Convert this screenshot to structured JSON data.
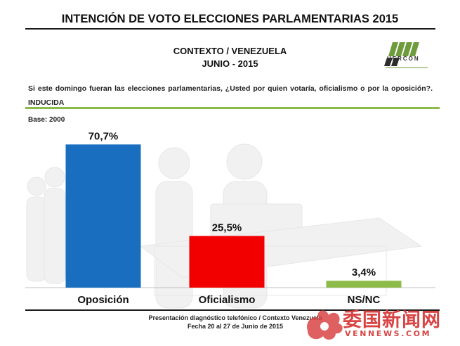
{
  "header": {
    "title": "INTENCIÓN DE VOTO ELECCIONES PARLAMENTARIAS 2015",
    "subtitle_line1": "CONTEXTO / VENEZUELA",
    "subtitle_line2": "JUNIO - 2015"
  },
  "logo": {
    "text": "HERCON"
  },
  "question": "Si este domingo fueran las elecciones parlamentarias, ¿Usted por quien votaría, oficialismo o por la oposición?. INDUCIDA",
  "base_note": "Base: 2000",
  "footer": {
    "line1": "Presentación diagnóstico telefónico / Contexto Venezuela",
    "line2": "Fecha  20 al 27 de Junio de 2015"
  },
  "watermark": {
    "text_cn": "委国新闻网",
    "text_en": "VENNEWS.COM"
  },
  "colors": {
    "opposition": "#1a6ec0",
    "officialism": "#f20000",
    "nsnc": "#8dbb4a",
    "rule_green": "#8dbb4a"
  },
  "chart_data": {
    "type": "bar",
    "categories": [
      "Oposición",
      "Oficialismo",
      "NS/NC"
    ],
    "values": [
      70.7,
      25.5,
      3.4
    ],
    "value_labels": [
      "70,7%",
      "25,5%",
      "3,4%"
    ],
    "unit": "%",
    "ylim": [
      0,
      75
    ],
    "grid": false,
    "legend": "none",
    "title": "",
    "xlabel": "",
    "ylabel": ""
  }
}
